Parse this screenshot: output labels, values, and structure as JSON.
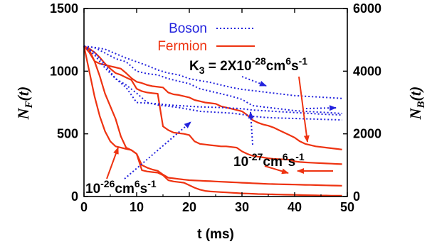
{
  "chart_data": {
    "type": "line",
    "xlabel": "t (ms)",
    "ylabel_left": "N_F(t)",
    "ylabel_left_main": "N",
    "ylabel_left_sub": "F",
    "ylabel_left_arg": "(t)",
    "ylabel_right": "N_B(t)",
    "ylabel_right_main": "N",
    "ylabel_right_sub": "B",
    "ylabel_right_arg": "(t)",
    "xlim": [
      0,
      50
    ],
    "ylim_left": [
      0,
      1500
    ],
    "ylim_right": [
      0,
      6000
    ],
    "xticks": [
      "0",
      "10",
      "20",
      "30",
      "40",
      "50"
    ],
    "yticks_left": [
      "0",
      "500",
      "1000",
      "1500"
    ],
    "yticks_right": [
      "0",
      "2000",
      "4000",
      "6000"
    ],
    "legend": {
      "position": "top-center",
      "entries": [
        {
          "name": "Boson",
          "color": "#2222dd",
          "style": "dotted"
        },
        {
          "name": "Fermion",
          "color": "#ee3311",
          "style": "solid"
        }
      ]
    },
    "annotations": {
      "k3_prefix": "K",
      "k3_sub": "3",
      "k3_mid": " = 2X10",
      "k3_exp": "-28",
      "k3_tail": "cm",
      "k3_exp2": "6",
      "k3_tail2": "s",
      "k3_exp3": "-1",
      "mid_base": "10",
      "mid_exp": "-27",
      "mid_tail": "cm",
      "mid_exp2": "6",
      "mid_tail2": "s",
      "mid_exp3": "-1",
      "low_base": "10",
      "low_exp": "-26",
      "low_tail": "cm",
      "low_exp2": "6",
      "low_tail2": "s",
      "low_exp3": "-1"
    },
    "series": [
      {
        "kind": "fermion",
        "axis": "left",
        "color": "#ee3311",
        "x": [
          0,
          1,
          2,
          3,
          4,
          5,
          6,
          7,
          8,
          9,
          10,
          11,
          12,
          13,
          14,
          15,
          16,
          17,
          18,
          19,
          20,
          21,
          22,
          23,
          24,
          25,
          26,
          27,
          28,
          29,
          30,
          31,
          32,
          33,
          34,
          35,
          36,
          37,
          38,
          39,
          40,
          41,
          42,
          43,
          44,
          45,
          46,
          47,
          48,
          49
        ],
        "y": [
          1200,
          1170,
          1080,
          1060,
          1050,
          1040,
          1030,
          1020,
          985,
          945,
          915,
          905,
          890,
          880,
          875,
          870,
          830,
          815,
          810,
          800,
          790,
          770,
          760,
          750,
          745,
          740,
          720,
          710,
          700,
          690,
          680,
          650,
          610,
          590,
          575,
          565,
          550,
          530,
          510,
          490,
          470,
          440,
          420,
          410,
          400,
          395,
          390,
          385,
          380,
          375
        ]
      },
      {
        "kind": "fermion",
        "axis": "left",
        "color": "#ee3311",
        "x": [
          0,
          1,
          2,
          3,
          4,
          5,
          6,
          7,
          8,
          9,
          10,
          11,
          12,
          13,
          14,
          15,
          16,
          17,
          18,
          19,
          20,
          21,
          22,
          23,
          24,
          25,
          26,
          27,
          28,
          29,
          30,
          31,
          32,
          33,
          34,
          35,
          36,
          37,
          38,
          39,
          40,
          41,
          42,
          43,
          44,
          45,
          46,
          47,
          48,
          49
        ],
        "y": [
          1200,
          1180,
          1150,
          1110,
          1060,
          1020,
          985,
          970,
          950,
          930,
          860,
          840,
          830,
          825,
          820,
          560,
          530,
          510,
          505,
          500,
          490,
          440,
          420,
          415,
          410,
          405,
          400,
          400,
          395,
          390,
          360,
          340,
          325,
          318,
          312,
          305,
          300,
          298,
          296,
          294,
          280,
          275,
          272,
          270,
          268,
          266,
          264,
          262,
          260,
          258
        ]
      },
      {
        "kind": "fermion",
        "axis": "left",
        "color": "#ee3311",
        "x": [
          0,
          1,
          2,
          3,
          4,
          5,
          6,
          7,
          8,
          9,
          10,
          11,
          12,
          13,
          14,
          15,
          16,
          17,
          18,
          19,
          20,
          21,
          22,
          23,
          24,
          25,
          26,
          27,
          28,
          29,
          30,
          31,
          32,
          33,
          34,
          35,
          36,
          37,
          38,
          39,
          40,
          41,
          42,
          43,
          44,
          45,
          46,
          47,
          48,
          49
        ],
        "y": [
          1200,
          1150,
          1080,
          960,
          820,
          720,
          620,
          480,
          390,
          370,
          340,
          250,
          230,
          215,
          205,
          175,
          150,
          145,
          140,
          135,
          130,
          128,
          126,
          124,
          122,
          120,
          118,
          116,
          114,
          112,
          110,
          108,
          106,
          104,
          102,
          100,
          99,
          98,
          97,
          96,
          95,
          94,
          93,
          92,
          91,
          90,
          89,
          88,
          87,
          86
        ]
      },
      {
        "kind": "fermion",
        "axis": "left",
        "color": "#ee3311",
        "x": [
          0,
          1,
          2,
          3,
          4,
          5,
          6,
          7,
          8,
          9,
          10,
          11,
          12,
          13,
          14,
          15,
          16,
          17,
          18,
          19,
          20,
          21,
          22,
          23,
          24,
          25,
          26,
          27,
          28,
          29,
          30,
          31,
          32,
          33,
          34,
          35,
          36,
          37,
          38,
          39,
          40,
          41,
          42,
          43,
          44,
          45,
          46,
          47,
          48,
          49
        ],
        "y": [
          1200,
          1000,
          800,
          640,
          520,
          440,
          400,
          390,
          380,
          370,
          340,
          210,
          200,
          195,
          190,
          170,
          130,
          120,
          115,
          110,
          90,
          70,
          55,
          45,
          40,
          38,
          35,
          33,
          30,
          28,
          25,
          24,
          22,
          20,
          19,
          18,
          17,
          16,
          15,
          14,
          13,
          12,
          11,
          10,
          9,
          8,
          8,
          7,
          7,
          6
        ]
      },
      {
        "kind": "boson",
        "axis": "right",
        "color": "#2222dd",
        "x": [
          0,
          2,
          4,
          6,
          8,
          10,
          12,
          14,
          16,
          18,
          20,
          22,
          24,
          26,
          28,
          30,
          32,
          34,
          36,
          38,
          40,
          42,
          44,
          46,
          48,
          49
        ],
        "y": [
          4800,
          4760,
          4700,
          4560,
          4420,
          4300,
          4180,
          4040,
          3940,
          3880,
          3760,
          3700,
          3640,
          3560,
          3480,
          3420,
          3380,
          3340,
          3300,
          3260,
          3220,
          3200,
          3180,
          3160,
          3140,
          3130
        ]
      },
      {
        "kind": "boson",
        "axis": "right",
        "color": "#2222dd",
        "x": [
          0,
          2,
          4,
          6,
          8,
          10,
          12,
          14,
          16,
          18,
          20,
          22,
          24,
          26,
          28,
          30,
          32,
          34,
          36,
          38,
          40,
          42,
          44,
          46,
          48,
          49
        ],
        "y": [
          4800,
          4750,
          4580,
          4400,
          4300,
          4000,
          3920,
          3880,
          3760,
          3680,
          3600,
          3440,
          3360,
          3280,
          3200,
          3100,
          2900,
          2860,
          2820,
          2780,
          2740,
          2720,
          2700,
          2680,
          2660,
          2650
        ]
      },
      {
        "kind": "boson",
        "axis": "right",
        "color": "#2222dd",
        "x": [
          0,
          2,
          4,
          6,
          8,
          10,
          12,
          14,
          16,
          18,
          20,
          22,
          24,
          26,
          28,
          30,
          32,
          34,
          36,
          38,
          40,
          42,
          44,
          46,
          48,
          49
        ],
        "y": [
          4800,
          4600,
          4200,
          3760,
          3480,
          3000,
          2980,
          2960,
          2920,
          2900,
          2880,
          2860,
          2850,
          2840,
          2820,
          2800,
          2760,
          2740,
          2720,
          2700,
          2680,
          2660,
          2640,
          2620,
          2610,
          2600
        ]
      },
      {
        "kind": "boson",
        "axis": "right",
        "color": "#2222dd",
        "x": [
          0,
          2,
          4,
          6,
          8,
          10,
          12,
          14,
          16,
          18,
          20,
          22,
          24,
          26,
          28,
          30,
          32,
          34,
          36,
          38,
          40,
          42,
          44,
          46,
          48,
          49
        ],
        "y": [
          4800,
          4520,
          4100,
          3760,
          3560,
          3300,
          3000,
          2920,
          2880,
          2840,
          2780,
          2720,
          2700,
          2680,
          2660,
          2620,
          2560,
          2530,
          2510,
          2500,
          2490,
          2480,
          2470,
          2460,
          2450,
          2440
        ]
      }
    ]
  }
}
